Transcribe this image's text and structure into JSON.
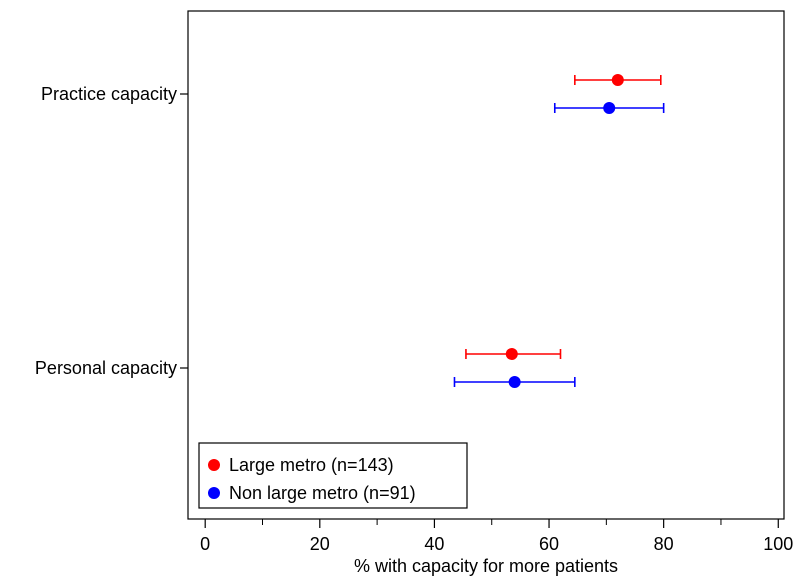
{
  "chart_data": {
    "type": "scatter",
    "subtype": "dot-and-whisker",
    "orientation": "horizontal",
    "title": "",
    "xlabel": "% with capacity for more patients",
    "ylabel": "",
    "xlim": [
      -3,
      101
    ],
    "x_ticks": [
      0,
      20,
      40,
      60,
      80,
      100
    ],
    "x_minor_ticks": [
      10,
      30,
      50,
      70,
      90
    ],
    "grid": false,
    "legend_position": "bottom-left",
    "categories": [
      "Practice capacity",
      "Personal capacity"
    ],
    "series": [
      {
        "name": "Large metro (n=143)",
        "color": "#ff0000",
        "points": [
          {
            "category": "Practice capacity",
            "value": 72,
            "ci_low": 64.5,
            "ci_high": 79.5
          },
          {
            "category": "Personal capacity",
            "value": 53.5,
            "ci_low": 45.5,
            "ci_high": 62
          }
        ]
      },
      {
        "name": "Non large metro (n=91)",
        "color": "#0000ff",
        "points": [
          {
            "category": "Practice capacity",
            "value": 70.5,
            "ci_low": 61,
            "ci_high": 80
          },
          {
            "category": "Personal capacity",
            "value": 54,
            "ci_low": 43.5,
            "ci_high": 64.5
          }
        ]
      }
    ]
  }
}
